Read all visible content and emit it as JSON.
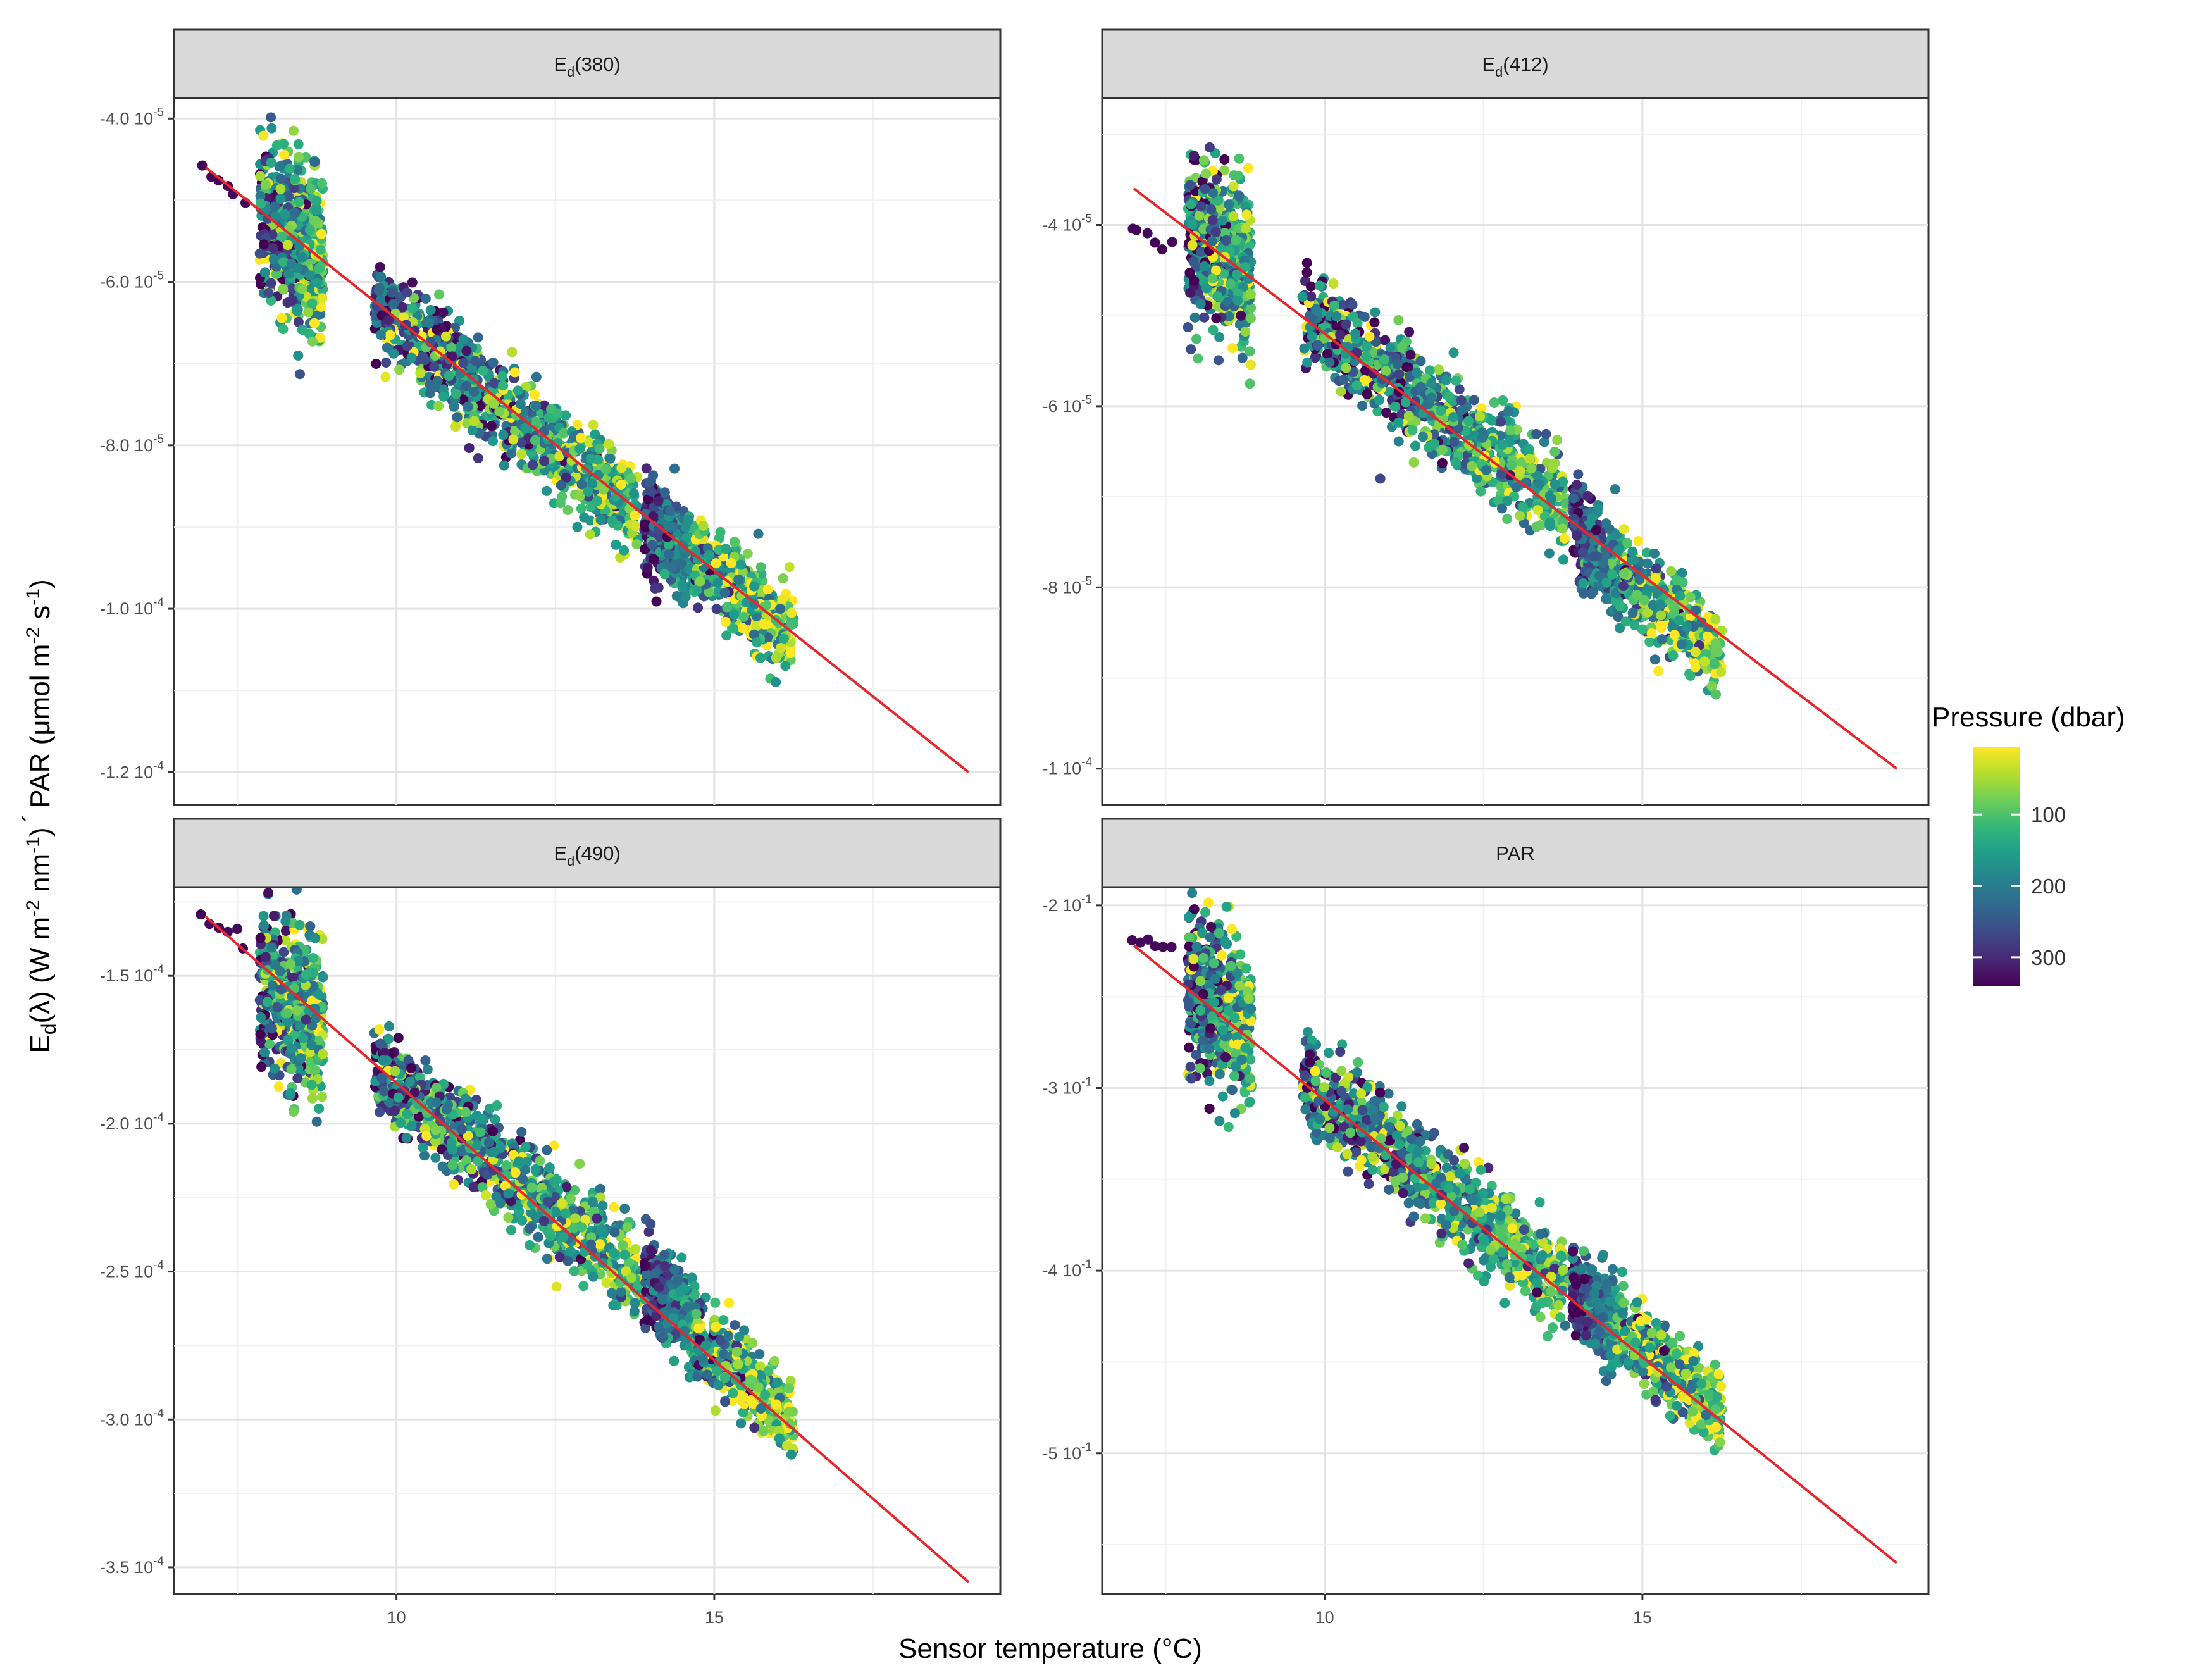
{
  "chart_data": {
    "type": "scatter",
    "facet_layout": "2x2",
    "x_axis": {
      "label": "Sensor temperature (°C)",
      "xlim": [
        6.5,
        19.5
      ],
      "ticks": [
        10,
        15
      ],
      "tick_labels": [
        "10",
        "15"
      ]
    },
    "y_axis": {
      "label_parts": {
        "ed": "E",
        "ed_sub": "d",
        "lambda": "(λ) (W m",
        "m2_sup": "-2",
        "nm": " nm",
        "nm_sup": "-1",
        "close": ")",
        "times": "´",
        "par": "PAR (μmol m",
        "m2b_sup": "-2",
        "s": " s",
        "s_sup": "-1",
        "close2": ")"
      }
    },
    "legend": {
      "title": "Pressure (dbar)",
      "position": "right",
      "range": [
        5,
        340
      ],
      "ticks": [
        100,
        200,
        300
      ],
      "tick_labels": [
        "100",
        "200",
        "300"
      ],
      "colormap": "viridis (reversed: low pressure = yellow)",
      "stops": [
        "#fde725",
        "#b5de2b",
        "#6ece58",
        "#35b779",
        "#1f9e89",
        "#26828e",
        "#31688e",
        "#3e4989",
        "#482878",
        "#440154"
      ]
    },
    "fit_line_color": "#e8262b",
    "panels": [
      {
        "strip": {
          "main": "E",
          "sub": "d",
          "rest": "(380)"
        },
        "ylim": [
          -0.000124,
          -3.75e-05
        ],
        "yticks": [
          {
            "value": -4e-05,
            "label": "-4.0 10"
          },
          {
            "value": -6e-05,
            "label": "-6.0 10"
          },
          {
            "value": -8e-05,
            "label": "-8.0 10"
          },
          {
            "value": -0.0001,
            "label": "-1.0 10"
          },
          {
            "value": -0.00012,
            "label": "-1.2 10"
          }
        ],
        "ytick_exponents": [
          "-5",
          "-5",
          "-5",
          "-4",
          "-4"
        ],
        "fit_line": {
          "x0": 7.0,
          "y0": -4.6e-05,
          "x1": 19.0,
          "y1": -0.00012
        },
        "scatter_lines": [
          {
            "x": [
              6.9,
              7.7
            ],
            "y": [
              -4.6e-05,
              -5.05e-05
            ]
          },
          {
            "x": [
              9.7,
              14.6
            ],
            "y": [
              -6.3e-05,
              -9.35e-05
            ]
          },
          {
            "x": [
              14.6,
              16.2
            ],
            "y": [
              -9.35e-05,
              -0.000103
            ]
          }
        ]
      },
      {
        "strip": {
          "main": "E",
          "sub": "d",
          "rest": "(412)"
        },
        "ylim": [
          -0.000104,
          -2.6e-05
        ],
        "yticks": [
          {
            "value": -4e-05,
            "label": "-4 10"
          },
          {
            "value": -6e-05,
            "label": "-6 10"
          },
          {
            "value": -8e-05,
            "label": "-8 10"
          },
          {
            "value": -0.0001,
            "label": "-1 10"
          }
        ],
        "ytick_exponents": [
          "-5",
          "-5",
          "-5",
          "-4"
        ],
        "fit_line": {
          "x0": 7.0,
          "y0": -3.6e-05,
          "x1": 19.0,
          "y1": -0.0001
        },
        "scatter_lines": [
          {
            "x": [
              6.9,
              7.7
            ],
            "y": [
              -4e-05,
              -4.3e-05
            ]
          },
          {
            "x": [
              9.7,
              14.0
            ],
            "y": [
              -5e-05,
              -7.2e-05
            ]
          },
          {
            "x": [
              14.0,
              16.2
            ],
            "y": [
              -7.5e-05,
              -8.7e-05
            ]
          }
        ]
      },
      {
        "strip": {
          "main": "E",
          "sub": "d",
          "rest": "(490)"
        },
        "ylim": [
          -0.000359,
          -0.00012
        ],
        "yticks": [
          {
            "value": -0.00015,
            "label": "-1.5 10"
          },
          {
            "value": -0.0002,
            "label": "-2.0 10"
          },
          {
            "value": -0.00025,
            "label": "-2.5 10"
          },
          {
            "value": -0.0003,
            "label": "-3.0 10"
          },
          {
            "value": -0.00035,
            "label": "-3.5 10"
          }
        ],
        "ytick_exponents": [
          "-4",
          "-4",
          "-4",
          "-4",
          "-4"
        ],
        "fit_line": {
          "x0": 7.0,
          "y0": -0.00013,
          "x1": 19.0,
          "y1": -0.000355
        },
        "scatter_lines": [
          {
            "x": [
              6.9,
              7.8
            ],
            "y": [
              -0.00013,
              -0.00014
            ]
          },
          {
            "x": [
              9.7,
              14.6
            ],
            "y": [
              -0.000182,
              -0.000265
            ]
          },
          {
            "x": [
              14.6,
              16.2
            ],
            "y": [
              -0.00027,
              -0.0003
            ]
          }
        ]
      },
      {
        "strip": {
          "main": "PAR",
          "sub": "",
          "rest": ""
        },
        "ylim": [
          -0.577,
          -0.19
        ],
        "yticks": [
          {
            "value": -0.2,
            "label": "-2 10"
          },
          {
            "value": -0.3,
            "label": "-3 10"
          },
          {
            "value": -0.4,
            "label": "-4 10"
          },
          {
            "value": -0.5,
            "label": "-5 10"
          }
        ],
        "ytick_exponents": [
          "-1",
          "-1",
          "-1",
          "-1"
        ],
        "fit_line": {
          "x0": 7.0,
          "y0": -0.222,
          "x1": 19.0,
          "y1": -0.56
        },
        "scatter_lines": [
          {
            "x": [
              6.9,
              7.7
            ],
            "y": [
              -0.217,
              -0.225
            ]
          },
          {
            "x": [
              9.7,
              14.6
            ],
            "y": [
              -0.295,
              -0.43
            ]
          },
          {
            "x": [
              14.6,
              16.2
            ],
            "y": [
              -0.43,
              -0.476
            ]
          }
        ]
      }
    ]
  }
}
